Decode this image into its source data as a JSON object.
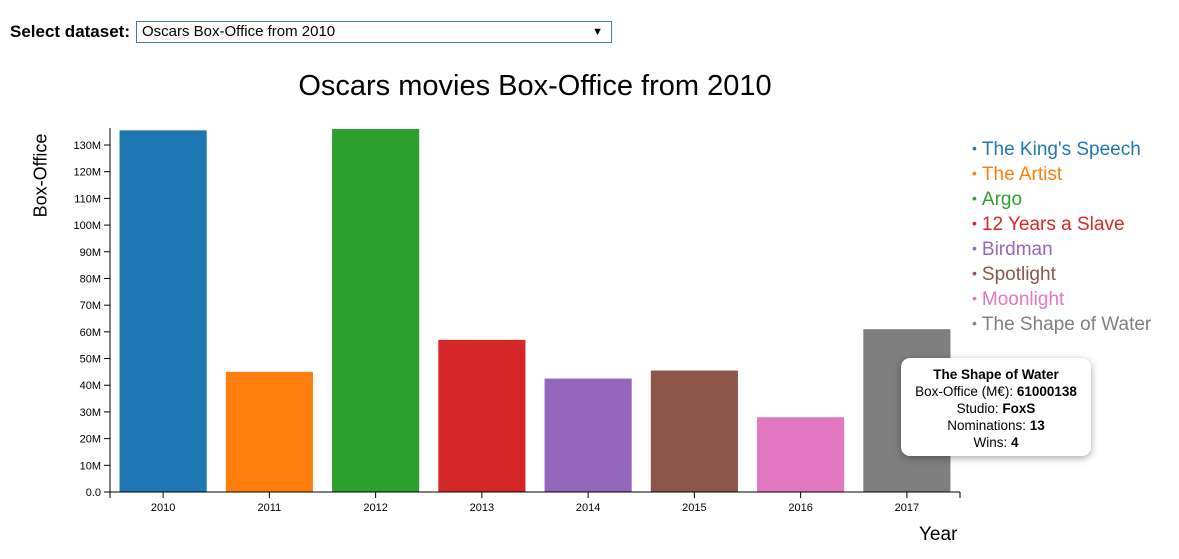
{
  "controls": {
    "label": "Select dataset:",
    "selected": "Oscars Box-Office from 2010"
  },
  "chart_data": {
    "type": "bar",
    "title": "Oscars movies Box-Office from 2010",
    "xlabel": "Year",
    "ylabel": "Box-Office",
    "categories": [
      "2010",
      "2011",
      "2012",
      "2013",
      "2014",
      "2015",
      "2016",
      "2017"
    ],
    "series_names": [
      "The King's Speech",
      "The Artist",
      "Argo",
      "12 Years a Slave",
      "Birdman",
      "Spotlight",
      "Moonlight",
      "The Shape of Water"
    ],
    "values": [
      135500000,
      45000000,
      136000000,
      57000000,
      42500000,
      45500000,
      28000000,
      61000138
    ],
    "colors": [
      "#1f77b4",
      "#ff7f0e",
      "#2ca02c",
      "#d62728",
      "#9467bd",
      "#8c564b",
      "#e377c2",
      "#7f7f7f"
    ],
    "ylim": [
      0,
      136000000
    ],
    "yticks": [
      0,
      10000000,
      20000000,
      30000000,
      40000000,
      50000000,
      60000000,
      70000000,
      80000000,
      90000000,
      100000000,
      110000000,
      120000000,
      130000000
    ],
    "ytick_labels": [
      "0.0",
      "10M",
      "20M",
      "30M",
      "40M",
      "50M",
      "60M",
      "70M",
      "80M",
      "90M",
      "100M",
      "110M",
      "120M",
      "130M"
    ],
    "legend_position": "right",
    "grid": false
  },
  "tooltip": {
    "title": "The Shape of Water",
    "box_office_label": "Box-Office (M€):",
    "box_office_value": "61000138",
    "studio_label": "Studio:",
    "studio_value": "FoxS",
    "nominations_label": "Nominations:",
    "nominations_value": "13",
    "wins_label": "Wins:",
    "wins_value": "4"
  }
}
